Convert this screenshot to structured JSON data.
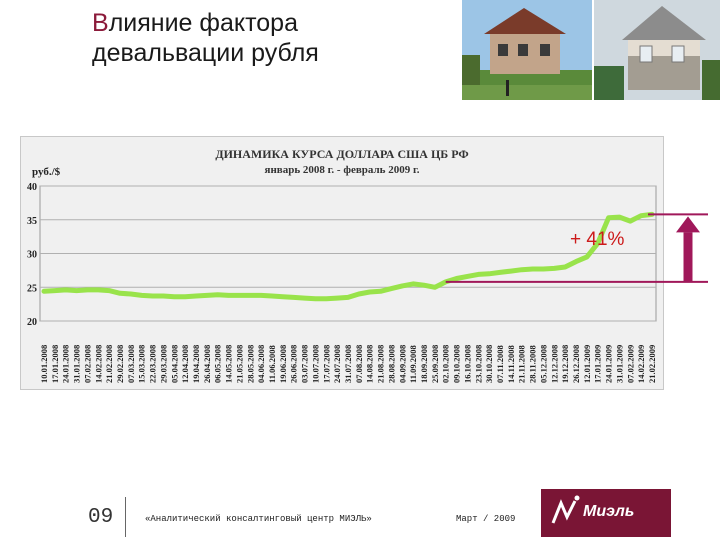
{
  "slide": {
    "title_first_letter": "В",
    "title_line1_rest": "лияние фактора",
    "title_line2": "девальвации рубля",
    "page_number": "09",
    "organization": "«Аналитический консалтинговый центр МИЭЛЬ»",
    "date": "Март / 2009",
    "logo_text": "Миэль"
  },
  "colors": {
    "title_accent": "#8b1a3a",
    "series": "#99e34b",
    "arrow": "#a0185a",
    "annotation": "#cc1a1a",
    "logo_bg": "#7a1535"
  },
  "chart_data": {
    "type": "line",
    "title": "ДИНАМИКА КУРСА ДОЛЛАРА США ЦБ РФ",
    "subtitle": "январь 2008 г. - февраль 2009 г.",
    "ylabel": "руб./$",
    "ylim": [
      20,
      40
    ],
    "yticks": [
      20,
      25,
      30,
      35,
      40
    ],
    "grid": true,
    "x_ticks": [
      "10.01.2008",
      "17.01.2008",
      "24.01.2008",
      "31.01.2008",
      "07.02.2008",
      "14.02.2008",
      "21.02.2008",
      "29.02.2008",
      "07.03.2008",
      "15.03.2008",
      "22.03.2008",
      "29.03.2008",
      "05.04.2008",
      "12.04.2008",
      "19.04.2008",
      "26.04.2008",
      "06.05.2008",
      "14.05.2008",
      "21.05.2008",
      "28.05.2008",
      "04.06.2008",
      "11.06.2008",
      "19.06.2008",
      "26.06.2008",
      "03.07.2008",
      "10.07.2008",
      "17.07.2008",
      "24.07.2008",
      "31.07.2008",
      "07.08.2008",
      "14.08.2008",
      "21.08.2008",
      "28.08.2008",
      "04.09.2008",
      "11.09.2008",
      "18.09.2008",
      "25.09.2008",
      "02.10.2008",
      "09.10.2008",
      "16.10.2008",
      "23.10.2008",
      "30.10.2008",
      "07.11.2008",
      "14.11.2008",
      "21.11.2008",
      "28.11.2008",
      "05.12.2008",
      "12.12.2008",
      "19.12.2008",
      "26.12.2008",
      "12.01.2009",
      "17.01.2009",
      "24.01.2009",
      "31.01.2009",
      "07.02.2009",
      "14.02.2009",
      "21.02.2009"
    ],
    "series": [
      {
        "values": [
          24.4,
          24.5,
          24.6,
          24.5,
          24.6,
          24.6,
          24.5,
          24.1,
          24.0,
          23.8,
          23.7,
          23.7,
          23.6,
          23.6,
          23.7,
          23.8,
          23.9,
          23.8,
          23.8,
          23.8,
          23.8,
          23.7,
          23.6,
          23.5,
          23.4,
          23.3,
          23.3,
          23.4,
          23.5,
          24.0,
          24.3,
          24.4,
          24.8,
          25.2,
          25.5,
          25.3,
          25.0,
          25.8,
          26.3,
          26.6,
          26.9,
          27.0,
          27.2,
          27.4,
          27.6,
          27.7,
          27.7,
          27.8,
          28.0,
          28.8,
          29.5,
          31.5,
          35.3,
          35.4,
          34.8,
          35.6,
          35.8
        ]
      }
    ],
    "annotations": [
      {
        "text": "+ 41%"
      }
    ]
  }
}
